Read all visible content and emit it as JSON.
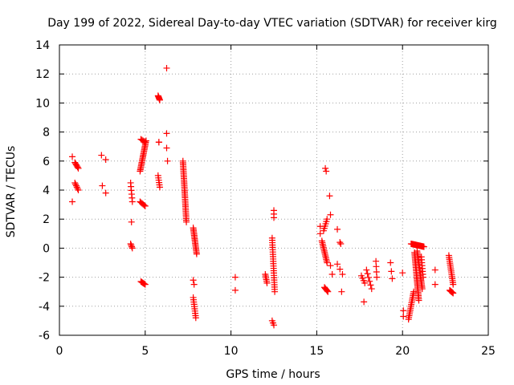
{
  "chart_data": {
    "type": "scatter",
    "title": "Day 199 of 2022, Sidereal Day-to-day VTEC variation (SDTVAR) for receiver kirg",
    "xlabel": "GPS time / hours",
    "ylabel": "SDTVAR / TECUs",
    "xlim": [
      0,
      25
    ],
    "ylim": [
      -6,
      14
    ],
    "xticks": [
      0,
      5,
      10,
      15,
      20,
      25
    ],
    "yticks": [
      -6,
      -4,
      -2,
      0,
      2,
      4,
      6,
      8,
      10,
      12,
      14
    ],
    "grid": true,
    "marker": "+",
    "color": "#ff0000",
    "segments": [
      {
        "x0": 0.75,
        "y0": 6.3,
        "x1": 0.75,
        "y1": 6.3,
        "n": 1
      },
      {
        "x0": 0.75,
        "y0": 3.2,
        "x1": 0.75,
        "y1": 3.2,
        "n": 1
      },
      {
        "x0": 0.9,
        "y0": 5.9,
        "x1": 1.1,
        "y1": 5.5,
        "n": 6
      },
      {
        "x0": 0.9,
        "y0": 4.5,
        "x1": 1.1,
        "y1": 4.0,
        "n": 6
      },
      {
        "x0": 2.45,
        "y0": 6.4,
        "x1": 2.7,
        "y1": 6.1,
        "n": 2
      },
      {
        "x0": 2.5,
        "y0": 4.3,
        "x1": 2.7,
        "y1": 3.8,
        "n": 2
      },
      {
        "x0": 4.15,
        "y0": 4.5,
        "x1": 4.25,
        "y1": 3.2,
        "n": 6
      },
      {
        "x0": 4.2,
        "y0": 1.8,
        "x1": 4.2,
        "y1": 1.8,
        "n": 1
      },
      {
        "x0": 4.15,
        "y0": 0.3,
        "x1": 4.25,
        "y1": 0.0,
        "n": 4
      },
      {
        "x0": 4.7,
        "y0": 5.3,
        "x1": 5.05,
        "y1": 7.4,
        "n": 22
      },
      {
        "x0": 4.75,
        "y0": 7.5,
        "x1": 5.0,
        "y1": 7.3,
        "n": 5
      },
      {
        "x0": 4.7,
        "y0": 3.2,
        "x1": 5.0,
        "y1": 2.9,
        "n": 6
      },
      {
        "x0": 4.75,
        "y0": -2.3,
        "x1": 5.0,
        "y1": -2.5,
        "n": 6
      },
      {
        "x0": 5.75,
        "y0": 10.5,
        "x1": 5.85,
        "y1": 10.2,
        "n": 6
      },
      {
        "x0": 5.8,
        "y0": 7.3,
        "x1": 5.8,
        "y1": 7.3,
        "n": 2
      },
      {
        "x0": 5.75,
        "y0": 5.0,
        "x1": 5.85,
        "y1": 4.2,
        "n": 6
      },
      {
        "x0": 6.25,
        "y0": 12.4,
        "x1": 6.25,
        "y1": 12.4,
        "n": 1
      },
      {
        "x0": 6.25,
        "y0": 7.9,
        "x1": 6.25,
        "y1": 6.9,
        "n": 2
      },
      {
        "x0": 6.3,
        "y0": 6.0,
        "x1": 6.3,
        "y1": 6.0,
        "n": 1
      },
      {
        "x0": 7.2,
        "y0": 6.0,
        "x1": 7.4,
        "y1": 1.8,
        "n": 36
      },
      {
        "x0": 7.8,
        "y0": 1.4,
        "x1": 8.0,
        "y1": -0.4,
        "n": 18
      },
      {
        "x0": 7.8,
        "y0": -2.2,
        "x1": 7.85,
        "y1": -2.5,
        "n": 2
      },
      {
        "x0": 7.8,
        "y0": -3.4,
        "x1": 7.95,
        "y1": -4.8,
        "n": 10
      },
      {
        "x0": 10.25,
        "y0": -2.0,
        "x1": 10.25,
        "y1": -2.0,
        "n": 1
      },
      {
        "x0": 10.25,
        "y0": -2.9,
        "x1": 10.25,
        "y1": -2.9,
        "n": 1
      },
      {
        "x0": 12.0,
        "y0": -1.8,
        "x1": 12.1,
        "y1": -2.4,
        "n": 6
      },
      {
        "x0": 12.4,
        "y0": 0.7,
        "x1": 12.55,
        "y1": -3.0,
        "n": 24
      },
      {
        "x0": 12.5,
        "y0": 2.6,
        "x1": 12.5,
        "y1": 2.1,
        "n": 3
      },
      {
        "x0": 12.4,
        "y0": -5.0,
        "x1": 12.5,
        "y1": -5.3,
        "n": 3
      },
      {
        "x0": 15.2,
        "y0": 1.5,
        "x1": 15.2,
        "y1": 1.0,
        "n": 2
      },
      {
        "x0": 15.3,
        "y0": 0.5,
        "x1": 15.6,
        "y1": -1.0,
        "n": 14
      },
      {
        "x0": 15.4,
        "y0": 1.2,
        "x1": 15.6,
        "y1": 2.0,
        "n": 6
      },
      {
        "x0": 15.45,
        "y0": -2.7,
        "x1": 15.65,
        "y1": -3.0,
        "n": 6
      },
      {
        "x0": 15.5,
        "y0": 5.5,
        "x1": 15.55,
        "y1": 5.3,
        "n": 2
      },
      {
        "x0": 15.75,
        "y0": 3.6,
        "x1": 15.75,
        "y1": 3.6,
        "n": 1
      },
      {
        "x0": 15.8,
        "y0": 2.3,
        "x1": 15.8,
        "y1": 2.3,
        "n": 1
      },
      {
        "x0": 15.8,
        "y0": -1.2,
        "x1": 15.9,
        "y1": -1.8,
        "n": 2
      },
      {
        "x0": 16.2,
        "y0": 1.3,
        "x1": 16.2,
        "y1": 1.3,
        "n": 1
      },
      {
        "x0": 16.35,
        "y0": 0.4,
        "x1": 16.4,
        "y1": 0.3,
        "n": 2
      },
      {
        "x0": 16.2,
        "y0": -1.1,
        "x1": 16.5,
        "y1": -1.8,
        "n": 3
      },
      {
        "x0": 16.45,
        "y0": -3.0,
        "x1": 16.45,
        "y1": -3.0,
        "n": 1
      },
      {
        "x0": 17.6,
        "y0": -1.9,
        "x1": 17.8,
        "y1": -2.4,
        "n": 4
      },
      {
        "x0": 17.75,
        "y0": -3.7,
        "x1": 17.75,
        "y1": -3.7,
        "n": 1
      },
      {
        "x0": 17.9,
        "y0": -1.5,
        "x1": 18.2,
        "y1": -2.8,
        "n": 6
      },
      {
        "x0": 18.45,
        "y0": -0.9,
        "x1": 18.5,
        "y1": -2.0,
        "n": 4
      },
      {
        "x0": 19.3,
        "y0": -1.0,
        "x1": 19.3,
        "y1": -1.0,
        "n": 1
      },
      {
        "x0": 19.35,
        "y0": -1.6,
        "x1": 19.4,
        "y1": -2.1,
        "n": 2
      },
      {
        "x0": 20.0,
        "y0": -1.7,
        "x1": 20.0,
        "y1": -1.7,
        "n": 1
      },
      {
        "x0": 20.05,
        "y0": -4.3,
        "x1": 20.05,
        "y1": -4.7,
        "n": 2
      },
      {
        "x0": 20.35,
        "y0": -4.9,
        "x1": 20.65,
        "y1": -3.0,
        "n": 16
      },
      {
        "x0": 20.5,
        "y0": 0.3,
        "x1": 21.25,
        "y1": 0.1,
        "n": 22
      },
      {
        "x0": 20.7,
        "y0": -0.3,
        "x1": 20.95,
        "y1": -3.6,
        "n": 30
      },
      {
        "x0": 20.85,
        "y0": -0.2,
        "x1": 21.15,
        "y1": -2.8,
        "n": 24
      },
      {
        "x0": 21.1,
        "y0": -0.6,
        "x1": 21.2,
        "y1": -2.0,
        "n": 8
      },
      {
        "x0": 21.9,
        "y0": -1.5,
        "x1": 21.9,
        "y1": -1.5,
        "n": 1
      },
      {
        "x0": 21.9,
        "y0": -2.5,
        "x1": 21.9,
        "y1": -2.5,
        "n": 1
      },
      {
        "x0": 22.7,
        "y0": -0.5,
        "x1": 22.95,
        "y1": -2.5,
        "n": 16
      },
      {
        "x0": 22.75,
        "y0": -2.9,
        "x1": 22.95,
        "y1": -3.1,
        "n": 6
      }
    ]
  }
}
